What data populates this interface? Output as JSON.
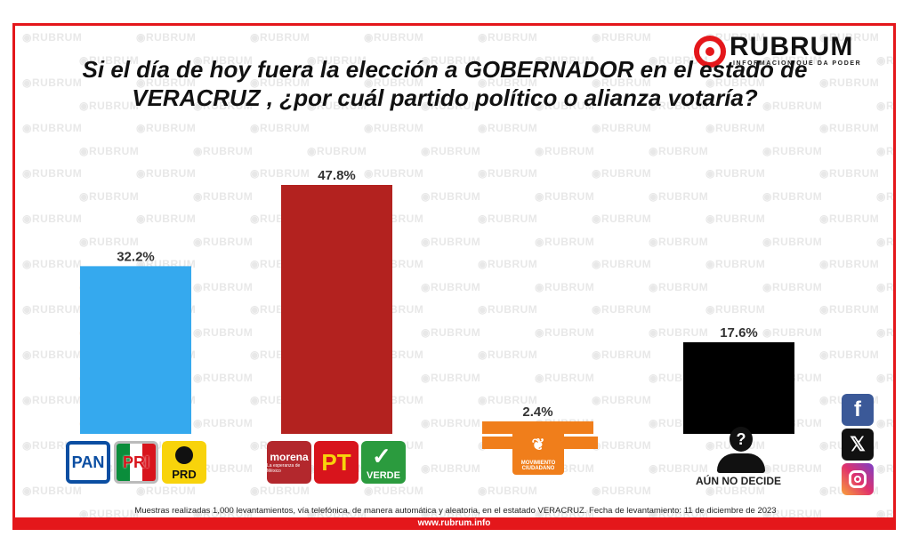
{
  "brand": {
    "name": "RUBRUM",
    "tagline": "INFORMACION QUE DA PODER",
    "watermark": "RUBRUM",
    "accent": "#e4171b"
  },
  "chart_data": {
    "type": "bar",
    "title": "Si el día de hoy fuera la elección a GOBERNADOR en el estado de VERACRUZ , ¿por cuál partido político o alianza votaría?",
    "categories": [
      "PAN-PRI-PRD",
      "MORENA-PT-VERDE",
      "MOVIMIENTO CIUDADANO",
      "AÚN NO DECIDE"
    ],
    "values": [
      32.2,
      47.8,
      2.4,
      17.6
    ],
    "labels": [
      "32.2%",
      "47.8%",
      "2.4%",
      "17.6%"
    ],
    "colors": [
      "#35a9ee",
      "#b3221f",
      "#f07e1b",
      "#000000"
    ],
    "ylim": [
      0,
      50
    ],
    "grid": false,
    "legend": "none"
  },
  "parties": {
    "pan": "PAN",
    "pri": "PRI",
    "prd": "PRD",
    "morena": "morena",
    "morena_sub": "La esperanza de México",
    "pt": "PT",
    "verde": "VERDE",
    "mc": "MOVIMIENTO CIUDADANO",
    "undecided": "AÚN NO DECIDE"
  },
  "social": {
    "facebook": "facebook-icon",
    "x": "x-icon",
    "instagram": "instagram-icon"
  },
  "footer": {
    "note": "Muestras realizadas 1,000 levantamientos, vía telefónica, de manera automática y aleatoria, en el estatado VERACRUZ. Fecha de levantamiento: 11 de diciembre de 2023",
    "url": "www.rubrum.info"
  }
}
